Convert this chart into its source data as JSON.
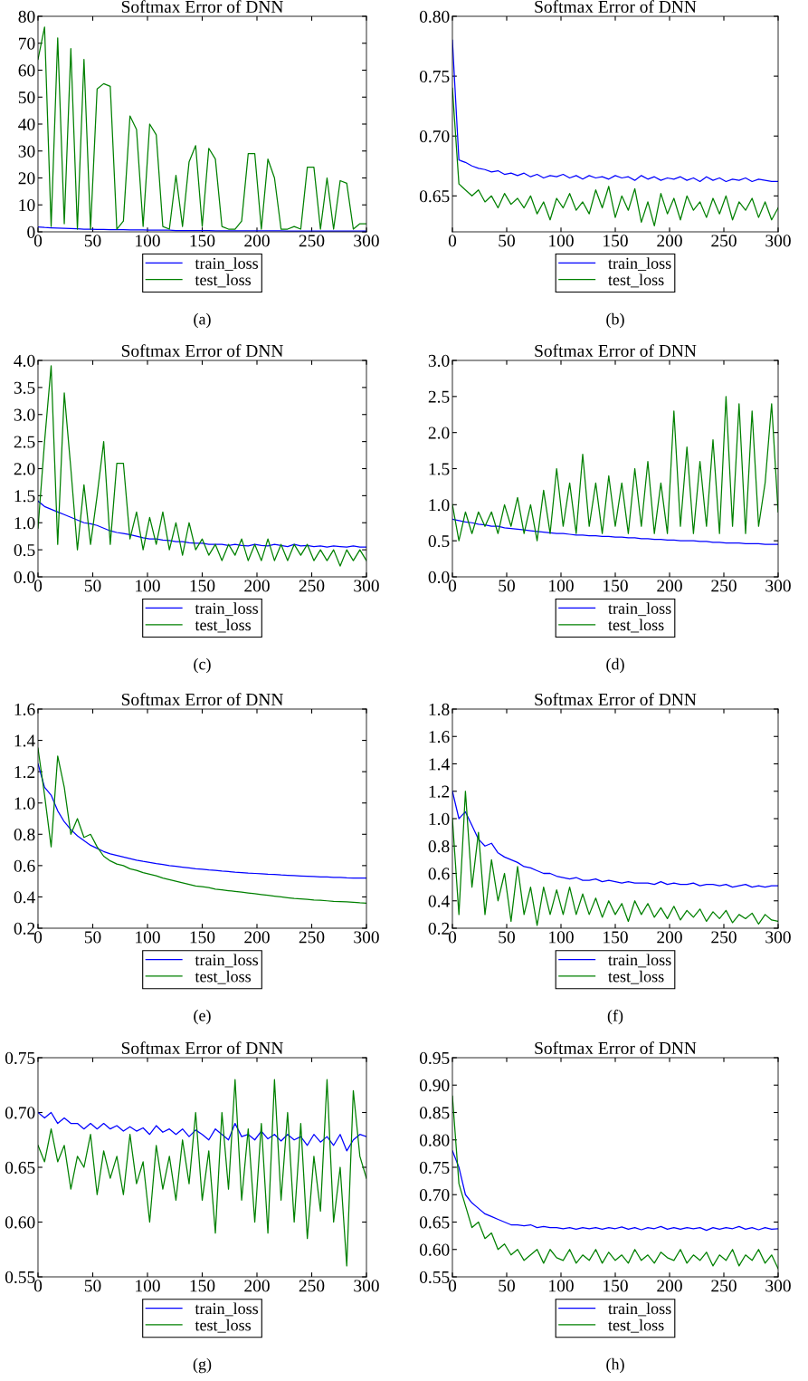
{
  "chart_data": [
    {
      "type": "line",
      "title": "Softmax Error of DNN",
      "annotations": [
        "(a)"
      ],
      "legend": "bottom",
      "grid": false,
      "xlim": [
        0,
        300
      ],
      "xticks": [
        0,
        50,
        100,
        150,
        200,
        250,
        300
      ],
      "ylim": [
        0,
        80
      ],
      "yticks": [
        0,
        10,
        20,
        30,
        40,
        50,
        60,
        70,
        80
      ],
      "x": [
        0,
        6,
        12,
        18,
        24,
        30,
        36,
        42,
        48,
        54,
        60,
        66,
        72,
        78,
        84,
        90,
        96,
        102,
        108,
        114,
        120,
        126,
        132,
        138,
        144,
        150,
        156,
        162,
        168,
        174,
        180,
        186,
        192,
        198,
        204,
        210,
        216,
        222,
        228,
        234,
        240,
        246,
        252,
        258,
        264,
        270,
        276,
        282,
        288,
        294,
        300
      ],
      "series": [
        {
          "name": "train_loss",
          "color": "#0000ff",
          "values": [
            1.8,
            1.6,
            1.5,
            1.4,
            1.3,
            1.2,
            1.1,
            1.0,
            1.0,
            0.9,
            0.9,
            0.8,
            0.8,
            0.8,
            0.7,
            0.7,
            0.7,
            0.6,
            0.6,
            0.6,
            0.6,
            0.5,
            0.5,
            0.5,
            0.5,
            0.5,
            0.5,
            0.4,
            0.4,
            0.4,
            0.4,
            0.4,
            0.4,
            0.4,
            0.4,
            0.4,
            0.4,
            0.4,
            0.3,
            0.3,
            0.3,
            0.3,
            0.3,
            0.3,
            0.3,
            0.3,
            0.3,
            0.3,
            0.3,
            0.3,
            0.3
          ]
        },
        {
          "name": "test_loss",
          "color": "#008000",
          "values": [
            64,
            76,
            2,
            72,
            3,
            68,
            1,
            64,
            1,
            53,
            55,
            54,
            1,
            4,
            43,
            38,
            2,
            40,
            36,
            2,
            1,
            21,
            2,
            26,
            32,
            2,
            31,
            27,
            2,
            1,
            1,
            4,
            29,
            29,
            1,
            27,
            20,
            1,
            1,
            2,
            1,
            24,
            24,
            1,
            20,
            1,
            19,
            18,
            1,
            3,
            3
          ]
        }
      ]
    },
    {
      "type": "line",
      "title": "Softmax Error of DNN",
      "annotations": [
        "(b)"
      ],
      "legend": "bottom",
      "grid": false,
      "xlim": [
        0,
        300
      ],
      "xticks": [
        0,
        50,
        100,
        150,
        200,
        250,
        300
      ],
      "ylim": [
        0.62,
        0.8
      ],
      "yticks": [
        {
          "value": 0.65,
          "label": "0.65"
        },
        {
          "value": 0.7,
          "label": "0.70"
        },
        {
          "value": 0.75,
          "label": "0.75"
        },
        {
          "value": 0.8,
          "label": "0.80"
        }
      ],
      "x": [
        0,
        6,
        12,
        18,
        24,
        30,
        36,
        42,
        48,
        54,
        60,
        66,
        72,
        78,
        84,
        90,
        96,
        102,
        108,
        114,
        120,
        126,
        132,
        138,
        144,
        150,
        156,
        162,
        168,
        174,
        180,
        186,
        192,
        198,
        204,
        210,
        216,
        222,
        228,
        234,
        240,
        246,
        252,
        258,
        264,
        270,
        276,
        282,
        288,
        294,
        300
      ],
      "series": [
        {
          "name": "train_loss",
          "color": "#0000ff",
          "values": [
            0.78,
            0.68,
            0.678,
            0.675,
            0.673,
            0.672,
            0.67,
            0.671,
            0.668,
            0.669,
            0.667,
            0.669,
            0.666,
            0.668,
            0.665,
            0.667,
            0.666,
            0.668,
            0.665,
            0.667,
            0.664,
            0.667,
            0.665,
            0.666,
            0.664,
            0.667,
            0.665,
            0.666,
            0.663,
            0.667,
            0.664,
            0.666,
            0.663,
            0.665,
            0.664,
            0.666,
            0.663,
            0.665,
            0.662,
            0.666,
            0.663,
            0.665,
            0.662,
            0.664,
            0.663,
            0.665,
            0.662,
            0.664,
            0.663,
            0.662,
            0.662
          ]
        },
        {
          "name": "test_loss",
          "color": "#008000",
          "values": [
            0.74,
            0.66,
            0.655,
            0.65,
            0.655,
            0.645,
            0.65,
            0.64,
            0.652,
            0.643,
            0.648,
            0.64,
            0.65,
            0.635,
            0.645,
            0.63,
            0.648,
            0.64,
            0.652,
            0.638,
            0.645,
            0.635,
            0.655,
            0.64,
            0.658,
            0.632,
            0.65,
            0.638,
            0.656,
            0.628,
            0.645,
            0.625,
            0.652,
            0.635,
            0.648,
            0.63,
            0.65,
            0.638,
            0.645,
            0.632,
            0.648,
            0.635,
            0.65,
            0.63,
            0.645,
            0.638,
            0.648,
            0.632,
            0.645,
            0.63,
            0.64
          ]
        }
      ]
    },
    {
      "type": "line",
      "title": "Softmax Error of DNN",
      "annotations": [
        "(c)"
      ],
      "legend": "bottom",
      "grid": false,
      "xlim": [
        0,
        300
      ],
      "xticks": [
        0,
        50,
        100,
        150,
        200,
        250,
        300
      ],
      "ylim": [
        0,
        4
      ],
      "yticks": [
        {
          "value": 0,
          "label": "0.0"
        },
        {
          "value": 0.5,
          "label": "0.5"
        },
        {
          "value": 1,
          "label": "1.0"
        },
        {
          "value": 1.5,
          "label": "1.5"
        },
        {
          "value": 2,
          "label": "2.0"
        },
        {
          "value": 2.5,
          "label": "2.5"
        },
        {
          "value": 3,
          "label": "3.0"
        },
        {
          "value": 3.5,
          "label": "3.5"
        },
        {
          "value": 4,
          "label": "4.0"
        }
      ],
      "x": [
        0,
        6,
        12,
        18,
        24,
        30,
        36,
        42,
        48,
        54,
        60,
        66,
        72,
        78,
        84,
        90,
        96,
        102,
        108,
        114,
        120,
        126,
        132,
        138,
        144,
        150,
        156,
        162,
        168,
        174,
        180,
        186,
        192,
        198,
        204,
        210,
        216,
        222,
        228,
        234,
        240,
        246,
        252,
        258,
        264,
        270,
        276,
        282,
        288,
        294,
        300
      ],
      "series": [
        {
          "name": "train_loss",
          "color": "#0000ff",
          "values": [
            1.4,
            1.3,
            1.25,
            1.2,
            1.15,
            1.1,
            1.05,
            1.0,
            0.98,
            0.95,
            0.9,
            0.85,
            0.82,
            0.8,
            0.78,
            0.75,
            0.72,
            0.7,
            0.7,
            0.68,
            0.67,
            0.65,
            0.65,
            0.63,
            0.62,
            0.62,
            0.6,
            0.6,
            0.6,
            0.58,
            0.6,
            0.58,
            0.57,
            0.6,
            0.58,
            0.57,
            0.6,
            0.58,
            0.56,
            0.6,
            0.57,
            0.58,
            0.56,
            0.57,
            0.55,
            0.57,
            0.56,
            0.55,
            0.57,
            0.55,
            0.55
          ]
        },
        {
          "name": "test_loss",
          "color": "#008000",
          "values": [
            0.9,
            2.5,
            3.9,
            0.6,
            3.4,
            2.0,
            0.5,
            1.7,
            0.6,
            1.5,
            2.5,
            0.6,
            2.1,
            2.1,
            0.7,
            1.2,
            0.5,
            1.1,
            0.6,
            1.2,
            0.5,
            1.0,
            0.4,
            1.0,
            0.5,
            0.7,
            0.4,
            0.6,
            0.3,
            0.6,
            0.4,
            0.7,
            0.3,
            0.6,
            0.3,
            0.7,
            0.3,
            0.6,
            0.3,
            0.6,
            0.4,
            0.6,
            0.3,
            0.5,
            0.3,
            0.5,
            0.2,
            0.5,
            0.3,
            0.5,
            0.3
          ]
        }
      ]
    },
    {
      "type": "line",
      "title": "Softmax Error of DNN",
      "annotations": [
        "(d)"
      ],
      "legend": "bottom",
      "grid": false,
      "xlim": [
        0,
        300
      ],
      "xticks": [
        0,
        50,
        100,
        150,
        200,
        250,
        300
      ],
      "ylim": [
        0,
        3
      ],
      "yticks": [
        {
          "value": 0,
          "label": "0.0"
        },
        {
          "value": 0.5,
          "label": "0.5"
        },
        {
          "value": 1,
          "label": "1.0"
        },
        {
          "value": 1.5,
          "label": "1.5"
        },
        {
          "value": 2,
          "label": "2.0"
        },
        {
          "value": 2.5,
          "label": "2.5"
        },
        {
          "value": 3,
          "label": "3.0"
        }
      ],
      "x": [
        0,
        6,
        12,
        18,
        24,
        30,
        36,
        42,
        48,
        54,
        60,
        66,
        72,
        78,
        84,
        90,
        96,
        102,
        108,
        114,
        120,
        126,
        132,
        138,
        144,
        150,
        156,
        162,
        168,
        174,
        180,
        186,
        192,
        198,
        204,
        210,
        216,
        222,
        228,
        234,
        240,
        246,
        252,
        258,
        264,
        270,
        276,
        282,
        288,
        294,
        300
      ],
      "series": [
        {
          "name": "train_loss",
          "color": "#0000ff",
          "values": [
            0.8,
            0.78,
            0.76,
            0.75,
            0.73,
            0.72,
            0.7,
            0.7,
            0.68,
            0.67,
            0.66,
            0.65,
            0.64,
            0.63,
            0.62,
            0.61,
            0.6,
            0.6,
            0.59,
            0.58,
            0.58,
            0.57,
            0.57,
            0.56,
            0.56,
            0.55,
            0.55,
            0.54,
            0.54,
            0.53,
            0.53,
            0.52,
            0.52,
            0.51,
            0.51,
            0.5,
            0.5,
            0.5,
            0.49,
            0.49,
            0.48,
            0.48,
            0.47,
            0.47,
            0.47,
            0.46,
            0.46,
            0.46,
            0.45,
            0.45,
            0.45
          ]
        },
        {
          "name": "test_loss",
          "color": "#008000",
          "values": [
            1.0,
            0.5,
            0.9,
            0.6,
            0.9,
            0.7,
            0.9,
            0.6,
            1.0,
            0.7,
            1.1,
            0.6,
            1.0,
            0.5,
            1.2,
            0.6,
            1.5,
            0.7,
            1.3,
            0.6,
            1.7,
            0.7,
            1.3,
            0.6,
            1.4,
            0.7,
            1.3,
            0.6,
            1.5,
            0.7,
            1.6,
            0.6,
            1.3,
            0.6,
            2.3,
            0.7,
            1.8,
            0.6,
            1.6,
            0.7,
            1.9,
            0.6,
            2.5,
            0.7,
            2.4,
            0.6,
            2.3,
            0.7,
            1.3,
            2.4,
            0.9
          ]
        }
      ]
    },
    {
      "type": "line",
      "title": "Softmax Error of DNN",
      "annotations": [
        "(e)"
      ],
      "legend": "bottom",
      "grid": false,
      "xlim": [
        0,
        300
      ],
      "xticks": [
        0,
        50,
        100,
        150,
        200,
        250,
        300
      ],
      "ylim": [
        0.2,
        1.6
      ],
      "yticks": [
        {
          "value": 0.2,
          "label": "0.2"
        },
        {
          "value": 0.4,
          "label": "0.4"
        },
        {
          "value": 0.6,
          "label": "0.6"
        },
        {
          "value": 0.8,
          "label": "0.8"
        },
        {
          "value": 1.0,
          "label": "1.0"
        },
        {
          "value": 1.2,
          "label": "1.2"
        },
        {
          "value": 1.4,
          "label": "1.4"
        },
        {
          "value": 1.6,
          "label": "1.6"
        }
      ],
      "x": [
        0,
        6,
        12,
        18,
        24,
        30,
        36,
        42,
        48,
        54,
        60,
        66,
        72,
        78,
        84,
        90,
        96,
        102,
        108,
        114,
        120,
        126,
        132,
        138,
        144,
        150,
        156,
        162,
        168,
        174,
        180,
        186,
        192,
        198,
        204,
        210,
        216,
        222,
        228,
        234,
        240,
        246,
        252,
        258,
        264,
        270,
        276,
        282,
        288,
        294,
        300
      ],
      "series": [
        {
          "name": "train_loss",
          "color": "#0000ff",
          "values": [
            1.25,
            1.1,
            1.05,
            0.95,
            0.88,
            0.83,
            0.79,
            0.76,
            0.73,
            0.71,
            0.69,
            0.675,
            0.665,
            0.655,
            0.645,
            0.635,
            0.627,
            0.62,
            0.613,
            0.607,
            0.6,
            0.595,
            0.59,
            0.585,
            0.58,
            0.577,
            0.573,
            0.57,
            0.565,
            0.562,
            0.558,
            0.555,
            0.552,
            0.55,
            0.548,
            0.545,
            0.543,
            0.54,
            0.538,
            0.536,
            0.534,
            0.532,
            0.53,
            0.528,
            0.527,
            0.525,
            0.524,
            0.522,
            0.521,
            0.52,
            0.52
          ]
        },
        {
          "name": "test_loss",
          "color": "#008000",
          "values": [
            1.35,
            1.05,
            0.72,
            1.3,
            1.1,
            0.8,
            0.9,
            0.78,
            0.8,
            0.72,
            0.66,
            0.63,
            0.61,
            0.6,
            0.58,
            0.57,
            0.555,
            0.545,
            0.535,
            0.52,
            0.51,
            0.5,
            0.49,
            0.48,
            0.47,
            0.465,
            0.46,
            0.45,
            0.445,
            0.44,
            0.435,
            0.43,
            0.425,
            0.42,
            0.415,
            0.41,
            0.405,
            0.4,
            0.395,
            0.39,
            0.388,
            0.385,
            0.38,
            0.378,
            0.375,
            0.372,
            0.37,
            0.368,
            0.365,
            0.362,
            0.36
          ]
        }
      ]
    },
    {
      "type": "line",
      "title": "Softmax Error of DNN",
      "annotations": [
        "(f)"
      ],
      "legend": "bottom",
      "grid": false,
      "xlim": [
        0,
        300
      ],
      "xticks": [
        0,
        50,
        100,
        150,
        200,
        250,
        300
      ],
      "ylim": [
        0.2,
        1.8
      ],
      "yticks": [
        {
          "value": 0.2,
          "label": "0.2"
        },
        {
          "value": 0.4,
          "label": "0.4"
        },
        {
          "value": 0.6,
          "label": "0.6"
        },
        {
          "value": 0.8,
          "label": "0.8"
        },
        {
          "value": 1.0,
          "label": "1.0"
        },
        {
          "value": 1.2,
          "label": "1.2"
        },
        {
          "value": 1.4,
          "label": "1.4"
        },
        {
          "value": 1.6,
          "label": "1.6"
        },
        {
          "value": 1.8,
          "label": "1.8"
        }
      ],
      "x": [
        0,
        6,
        12,
        18,
        24,
        30,
        36,
        42,
        48,
        54,
        60,
        66,
        72,
        78,
        84,
        90,
        96,
        102,
        108,
        114,
        120,
        126,
        132,
        138,
        144,
        150,
        156,
        162,
        168,
        174,
        180,
        186,
        192,
        198,
        204,
        210,
        216,
        222,
        228,
        234,
        240,
        246,
        252,
        258,
        264,
        270,
        276,
        282,
        288,
        294,
        300
      ],
      "series": [
        {
          "name": "train_loss",
          "color": "#0000ff",
          "values": [
            1.2,
            1.0,
            1.05,
            0.95,
            0.85,
            0.8,
            0.82,
            0.75,
            0.72,
            0.7,
            0.68,
            0.65,
            0.64,
            0.62,
            0.6,
            0.6,
            0.58,
            0.57,
            0.56,
            0.57,
            0.55,
            0.55,
            0.56,
            0.54,
            0.55,
            0.54,
            0.53,
            0.54,
            0.53,
            0.53,
            0.53,
            0.52,
            0.54,
            0.52,
            0.53,
            0.52,
            0.52,
            0.53,
            0.51,
            0.52,
            0.52,
            0.51,
            0.52,
            0.5,
            0.51,
            0.52,
            0.5,
            0.51,
            0.5,
            0.51,
            0.51
          ]
        },
        {
          "name": "test_loss",
          "color": "#008000",
          "values": [
            1.0,
            0.3,
            1.2,
            0.5,
            0.9,
            0.3,
            0.7,
            0.4,
            0.6,
            0.25,
            0.65,
            0.3,
            0.5,
            0.22,
            0.5,
            0.3,
            0.48,
            0.3,
            0.5,
            0.3,
            0.45,
            0.3,
            0.42,
            0.28,
            0.4,
            0.3,
            0.38,
            0.25,
            0.4,
            0.3,
            0.38,
            0.28,
            0.35,
            0.27,
            0.36,
            0.26,
            0.33,
            0.28,
            0.34,
            0.25,
            0.32,
            0.27,
            0.33,
            0.24,
            0.3,
            0.27,
            0.31,
            0.23,
            0.3,
            0.26,
            0.25
          ]
        }
      ]
    },
    {
      "type": "line",
      "title": "Softmax Error of DNN",
      "annotations": [
        "(g)"
      ],
      "legend": "bottom",
      "grid": false,
      "xlim": [
        0,
        300
      ],
      "xticks": [
        0,
        50,
        100,
        150,
        200,
        250,
        300
      ],
      "ylim": [
        0.55,
        0.75
      ],
      "yticks": [
        {
          "value": 0.55,
          "label": "0.55"
        },
        {
          "value": 0.6,
          "label": "0.60"
        },
        {
          "value": 0.65,
          "label": "0.65"
        },
        {
          "value": 0.7,
          "label": "0.70"
        },
        {
          "value": 0.75,
          "label": "0.75"
        }
      ],
      "x": [
        0,
        6,
        12,
        18,
        24,
        30,
        36,
        42,
        48,
        54,
        60,
        66,
        72,
        78,
        84,
        90,
        96,
        102,
        108,
        114,
        120,
        126,
        132,
        138,
        144,
        150,
        156,
        162,
        168,
        174,
        180,
        186,
        192,
        198,
        204,
        210,
        216,
        222,
        228,
        234,
        240,
        246,
        252,
        258,
        264,
        270,
        276,
        282,
        288,
        294,
        300
      ],
      "series": [
        {
          "name": "train_loss",
          "color": "#0000ff",
          "values": [
            0.7,
            0.695,
            0.7,
            0.69,
            0.695,
            0.69,
            0.69,
            0.685,
            0.69,
            0.685,
            0.69,
            0.685,
            0.688,
            0.683,
            0.687,
            0.683,
            0.686,
            0.68,
            0.688,
            0.682,
            0.685,
            0.68,
            0.685,
            0.678,
            0.684,
            0.68,
            0.675,
            0.685,
            0.68,
            0.675,
            0.69,
            0.678,
            0.68,
            0.675,
            0.683,
            0.676,
            0.68,
            0.674,
            0.68,
            0.675,
            0.678,
            0.67,
            0.68,
            0.673,
            0.678,
            0.67,
            0.68,
            0.665,
            0.675,
            0.68,
            0.678
          ]
        },
        {
          "name": "test_loss",
          "color": "#008000",
          "values": [
            0.67,
            0.655,
            0.685,
            0.655,
            0.67,
            0.63,
            0.66,
            0.65,
            0.68,
            0.625,
            0.665,
            0.64,
            0.66,
            0.625,
            0.68,
            0.635,
            0.655,
            0.6,
            0.67,
            0.63,
            0.66,
            0.62,
            0.675,
            0.635,
            0.7,
            0.62,
            0.665,
            0.59,
            0.7,
            0.63,
            0.73,
            0.62,
            0.685,
            0.6,
            0.69,
            0.59,
            0.73,
            0.62,
            0.7,
            0.6,
            0.69,
            0.585,
            0.66,
            0.61,
            0.73,
            0.6,
            0.65,
            0.56,
            0.72,
            0.66,
            0.64
          ]
        }
      ]
    },
    {
      "type": "line",
      "title": "Softmax Error of DNN",
      "annotations": [
        "(h)"
      ],
      "legend": "bottom",
      "grid": false,
      "xlim": [
        0,
        300
      ],
      "xticks": [
        0,
        50,
        100,
        150,
        200,
        250,
        300
      ],
      "ylim": [
        0.55,
        0.95
      ],
      "yticks": [
        {
          "value": 0.55,
          "label": "0.55"
        },
        {
          "value": 0.6,
          "label": "0.60"
        },
        {
          "value": 0.65,
          "label": "0.65"
        },
        {
          "value": 0.7,
          "label": "0.70"
        },
        {
          "value": 0.75,
          "label": "0.75"
        },
        {
          "value": 0.8,
          "label": "0.80"
        },
        {
          "value": 0.85,
          "label": "0.85"
        },
        {
          "value": 0.9,
          "label": "0.90"
        },
        {
          "value": 0.95,
          "label": "0.95"
        }
      ],
      "x": [
        0,
        6,
        12,
        18,
        24,
        30,
        36,
        42,
        48,
        54,
        60,
        66,
        72,
        78,
        84,
        90,
        96,
        102,
        108,
        114,
        120,
        126,
        132,
        138,
        144,
        150,
        156,
        162,
        168,
        174,
        180,
        186,
        192,
        198,
        204,
        210,
        216,
        222,
        228,
        234,
        240,
        246,
        252,
        258,
        264,
        270,
        276,
        282,
        288,
        294,
        300
      ],
      "series": [
        {
          "name": "train_loss",
          "color": "#0000ff",
          "values": [
            0.78,
            0.75,
            0.7,
            0.685,
            0.675,
            0.665,
            0.66,
            0.655,
            0.65,
            0.645,
            0.645,
            0.643,
            0.645,
            0.64,
            0.642,
            0.64,
            0.64,
            0.638,
            0.64,
            0.637,
            0.64,
            0.638,
            0.64,
            0.637,
            0.64,
            0.638,
            0.641,
            0.637,
            0.64,
            0.636,
            0.64,
            0.638,
            0.642,
            0.637,
            0.64,
            0.637,
            0.64,
            0.638,
            0.64,
            0.635,
            0.64,
            0.637,
            0.64,
            0.638,
            0.642,
            0.637,
            0.64,
            0.636,
            0.64,
            0.637,
            0.638
          ]
        },
        {
          "name": "test_loss",
          "color": "#008000",
          "values": [
            0.88,
            0.72,
            0.68,
            0.64,
            0.65,
            0.62,
            0.63,
            0.6,
            0.61,
            0.59,
            0.6,
            0.58,
            0.59,
            0.6,
            0.575,
            0.6,
            0.585,
            0.58,
            0.6,
            0.575,
            0.59,
            0.58,
            0.6,
            0.575,
            0.595,
            0.58,
            0.59,
            0.575,
            0.6,
            0.58,
            0.59,
            0.575,
            0.595,
            0.585,
            0.58,
            0.6,
            0.575,
            0.59,
            0.58,
            0.595,
            0.57,
            0.59,
            0.58,
            0.6,
            0.57,
            0.59,
            0.58,
            0.6,
            0.575,
            0.59,
            0.565
          ]
        }
      ]
    }
  ]
}
